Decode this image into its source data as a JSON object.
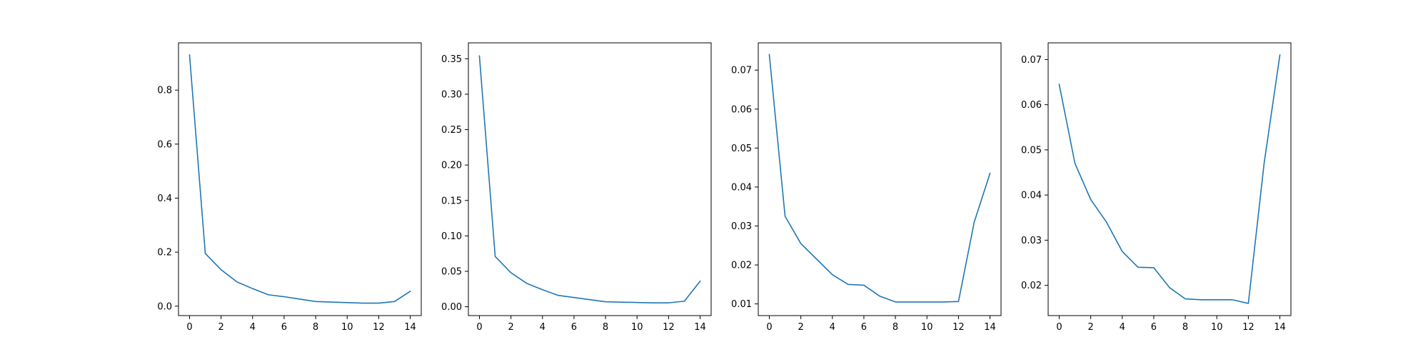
{
  "chart_data": [
    {
      "type": "line",
      "x": [
        0,
        1,
        2,
        3,
        4,
        5,
        6,
        7,
        8,
        9,
        10,
        11,
        12,
        13,
        14
      ],
      "series": [
        {
          "values": [
            0.93,
            0.195,
            0.135,
            0.09,
            0.065,
            0.042,
            0.035,
            0.026,
            0.017,
            0.015,
            0.013,
            0.011,
            0.011,
            0.017,
            0.055
          ],
          "color": "#1f77b4"
        }
      ],
      "xlim": [
        -0.7,
        14.7
      ],
      "ylim": [
        -0.035,
        0.975
      ],
      "xticks": [
        0,
        2,
        4,
        6,
        8,
        10,
        12,
        14
      ],
      "yticks": [
        0.0,
        0.2,
        0.4,
        0.6,
        0.8
      ],
      "ytick_labels": [
        "0.0",
        "0.2",
        "0.4",
        "0.6",
        "0.8"
      ],
      "xlabel": "",
      "ylabel": "",
      "title": "",
      "grid": false
    },
    {
      "type": "line",
      "x": [
        0,
        1,
        2,
        3,
        4,
        5,
        6,
        7,
        8,
        9,
        10,
        11,
        12,
        13,
        14
      ],
      "series": [
        {
          "values": [
            0.354,
            0.071,
            0.048,
            0.033,
            0.024,
            0.016,
            0.013,
            0.01,
            0.007,
            0.0065,
            0.006,
            0.0055,
            0.0055,
            0.0078,
            0.036
          ],
          "color": "#1f77b4"
        }
      ],
      "xlim": [
        -0.7,
        14.7
      ],
      "ylim": [
        -0.0125,
        0.3725
      ],
      "xticks": [
        0,
        2,
        4,
        6,
        8,
        10,
        12,
        14
      ],
      "yticks": [
        0.0,
        0.05,
        0.1,
        0.15,
        0.2,
        0.25,
        0.3,
        0.35
      ],
      "ytick_labels": [
        "0.00",
        "0.05",
        "0.10",
        "0.15",
        "0.20",
        "0.25",
        "0.30",
        "0.35"
      ],
      "xlabel": "",
      "ylabel": "",
      "title": "",
      "grid": false
    },
    {
      "type": "line",
      "x": [
        0,
        1,
        2,
        3,
        4,
        5,
        6,
        7,
        8,
        9,
        10,
        11,
        12,
        13,
        14
      ],
      "series": [
        {
          "values": [
            0.074,
            0.0325,
            0.0255,
            0.0215,
            0.0175,
            0.015,
            0.0148,
            0.012,
            0.0105,
            0.0105,
            0.0105,
            0.0105,
            0.0106,
            0.031,
            0.0435
          ],
          "color": "#1f77b4"
        }
      ],
      "xlim": [
        -0.7,
        14.7
      ],
      "ylim": [
        0.007,
        0.077
      ],
      "xticks": [
        0,
        2,
        4,
        6,
        8,
        10,
        12,
        14
      ],
      "yticks": [
        0.01,
        0.02,
        0.03,
        0.04,
        0.05,
        0.06,
        0.07
      ],
      "ytick_labels": [
        "0.01",
        "0.02",
        "0.03",
        "0.04",
        "0.05",
        "0.06",
        "0.07"
      ],
      "xlabel": "",
      "ylabel": "",
      "title": "",
      "grid": false
    },
    {
      "type": "line",
      "x": [
        0,
        1,
        2,
        3,
        4,
        5,
        6,
        7,
        8,
        9,
        10,
        11,
        12,
        13,
        14
      ],
      "series": [
        {
          "values": [
            0.0645,
            0.047,
            0.039,
            0.034,
            0.0275,
            0.024,
            0.0239,
            0.0195,
            0.017,
            0.0168,
            0.0168,
            0.0168,
            0.016,
            0.047,
            0.071
          ],
          "color": "#1f77b4"
        }
      ],
      "xlim": [
        -0.7,
        14.7
      ],
      "ylim": [
        0.0133,
        0.0737
      ],
      "xticks": [
        0,
        2,
        4,
        6,
        8,
        10,
        12,
        14
      ],
      "yticks": [
        0.02,
        0.03,
        0.04,
        0.05,
        0.06,
        0.07
      ],
      "ytick_labels": [
        "0.02",
        "0.03",
        "0.04",
        "0.05",
        "0.06",
        "0.07"
      ],
      "xlabel": "",
      "ylabel": "",
      "title": "",
      "grid": false
    }
  ]
}
